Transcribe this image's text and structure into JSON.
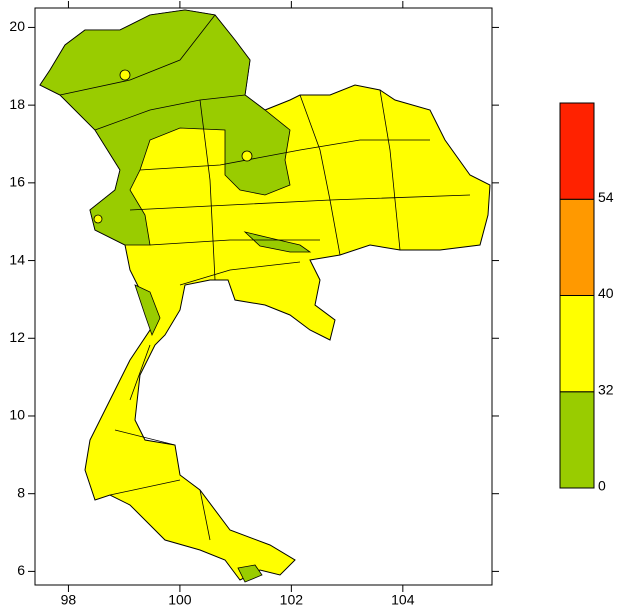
{
  "map": {
    "xlim": [
      97.4,
      105.6
    ],
    "ylim": [
      5.65,
      20.5
    ],
    "xticks": [
      98,
      100,
      102,
      104
    ],
    "yticks": [
      6,
      8,
      10,
      12,
      14,
      16,
      18,
      20
    ],
    "colorbar": {
      "levels": [
        0,
        32,
        40,
        54
      ],
      "colors": [
        "#99cc00",
        "#ffff00",
        "#ff9900",
        "#ff2200"
      ]
    }
  }
}
